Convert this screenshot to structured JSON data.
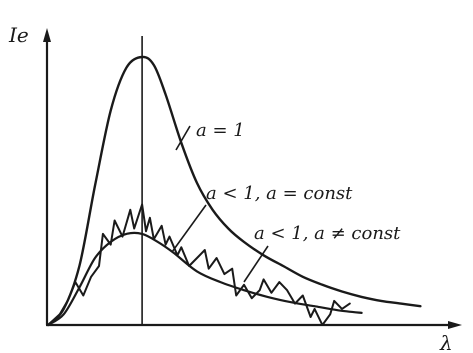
{
  "chart_data": {
    "type": "line",
    "title": "",
    "ylabel": "Ie",
    "xlabel": "λ",
    "xlim": [
      0,
      100
    ],
    "ylim": [
      0,
      100
    ],
    "grid": false,
    "reference_line": {
      "x": 24
    },
    "series": [
      {
        "name": "a=1",
        "x": [
          0,
          4,
          8,
          12,
          16,
          20,
          24,
          27,
          30,
          34,
          38,
          42,
          46,
          50,
          55,
          60,
          65,
          70,
          75,
          80,
          85,
          90,
          95
        ],
        "y": [
          0,
          6,
          22,
          52,
          80,
          96,
          100,
          97,
          86,
          68,
          53,
          43,
          36,
          31,
          26,
          22,
          18,
          15,
          12.5,
          10.5,
          9,
          8,
          7
        ]
      },
      {
        "name": "a<1, a=const",
        "x": [
          0,
          4,
          8,
          12,
          16,
          20,
          24,
          28,
          32,
          38,
          44,
          50,
          56,
          62,
          68,
          74,
          80
        ],
        "y": [
          0,
          4,
          14,
          25,
          31,
          34,
          34,
          31,
          27,
          20,
          16,
          13,
          10.5,
          8.5,
          7,
          5.5,
          4.5
        ]
      },
      {
        "name": "a<1, a≠const",
        "x": [
          0,
          3,
          5,
          7,
          9,
          11,
          13,
          14,
          16,
          17,
          19,
          21,
          22,
          24,
          25,
          26,
          27,
          29,
          30,
          31,
          33,
          34,
          36,
          38,
          40,
          41,
          43,
          45,
          47,
          48,
          50,
          52,
          54,
          55,
          57,
          59,
          61,
          63,
          65,
          67,
          68,
          70,
          72,
          73,
          75,
          77
        ],
        "y": [
          0,
          4,
          9,
          16,
          11,
          18,
          22,
          34,
          30,
          39,
          33,
          43,
          36,
          45,
          35,
          40,
          32,
          37,
          30,
          33,
          26,
          29,
          22,
          25,
          28,
          21,
          25,
          19,
          21,
          11,
          15,
          10,
          13,
          17,
          12,
          16,
          13,
          8,
          11,
          3,
          6,
          0,
          4,
          9,
          6,
          8
        ]
      }
    ],
    "annotations": [
      {
        "text": "a = 1",
        "series": 0
      },
      {
        "text": "a < 1, a = const",
        "series": 1
      },
      {
        "text": "a < 1, a ≠ const",
        "series": 2
      }
    ]
  },
  "style": {
    "ink": "#1a1a1a"
  }
}
